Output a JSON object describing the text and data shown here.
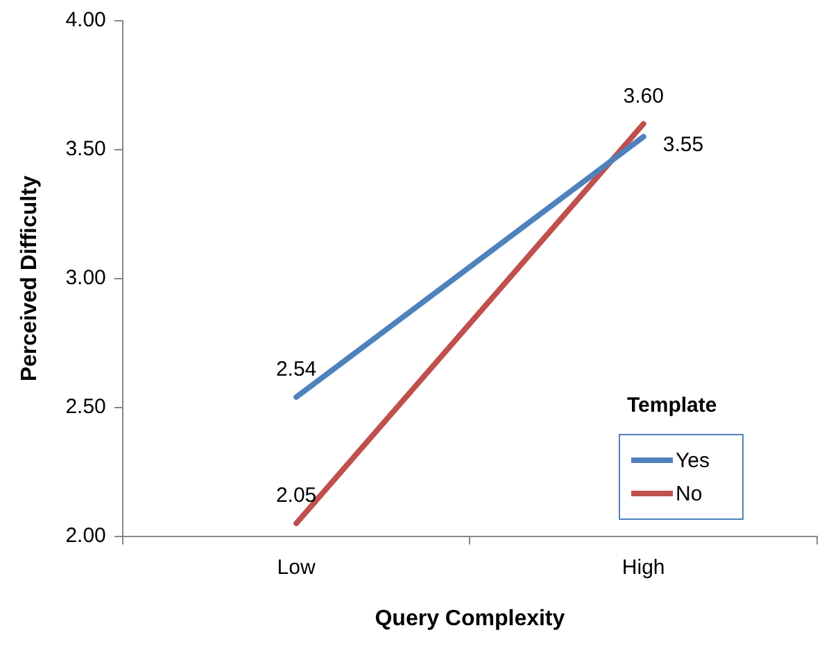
{
  "chart_data": {
    "type": "line",
    "xlabel": "Query Complexity",
    "ylabel": "Perceived Difficulty",
    "legend_title": "Template",
    "categories": [
      "Low",
      "High"
    ],
    "series": [
      {
        "name": "Yes",
        "color": "#4f81bd",
        "values": [
          2.54,
          3.55
        ],
        "value_labels": [
          "2.54",
          "3.55"
        ]
      },
      {
        "name": "No",
        "color": "#c0504d",
        "values": [
          2.05,
          3.6
        ],
        "value_labels": [
          "2.05",
          "3.60"
        ]
      }
    ],
    "ylim": [
      2,
      4
    ],
    "yticks": [
      {
        "value": 2,
        "label": "2.00"
      },
      {
        "value": 2.5,
        "label": "2.50"
      },
      {
        "value": 3,
        "label": "3.00"
      },
      {
        "value": 3.5,
        "label": "3.50"
      },
      {
        "value": 4,
        "label": "4.00"
      }
    ],
    "grid": false,
    "legend": "bottom right",
    "marker": "none",
    "line_style": "solid"
  }
}
